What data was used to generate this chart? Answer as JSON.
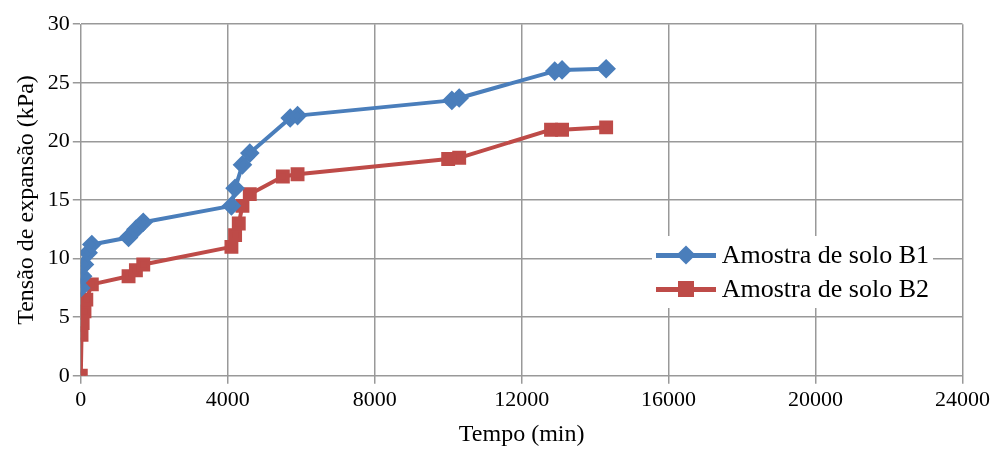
{
  "chart_data": {
    "type": "line",
    "xlabel": "Tempo (min)",
    "ylabel": "Tensão de expansão (kPa)",
    "xlim": [
      0,
      24000
    ],
    "xticks": [
      0,
      4000,
      8000,
      12000,
      16000,
      20000,
      24000
    ],
    "ylim": [
      0,
      30
    ],
    "yticks": [
      0,
      5,
      10,
      15,
      20,
      25,
      30
    ],
    "grid": true,
    "legend": "right",
    "series": [
      {
        "name": "Amostra de solo B1",
        "color": "#4a7ebb",
        "marker": "diamond",
        "x": [
          0,
          50,
          100,
          200,
          300,
          1300,
          1500,
          1700,
          4100,
          4200,
          4400,
          4600,
          5700,
          5900,
          10100,
          10300,
          12900,
          13100,
          14300
        ],
        "values": [
          7.5,
          8.5,
          9.5,
          10.5,
          11.2,
          11.8,
          12.5,
          13.1,
          14.5,
          16,
          18,
          19,
          22,
          22.2,
          23.5,
          23.7,
          26,
          26.1,
          26.2
        ]
      },
      {
        "name": "Amostra de solo B2",
        "color": "#be4b48",
        "marker": "square",
        "x": [
          0,
          20,
          50,
          100,
          150,
          300,
          1300,
          1500,
          1700,
          4100,
          4200,
          4300,
          4400,
          4600,
          5500,
          5900,
          10000,
          10300,
          12800,
          13100,
          14300
        ],
        "values": [
          0,
          3.5,
          4.5,
          5.5,
          6.5,
          7.8,
          8.5,
          9,
          9.5,
          11,
          12,
          13,
          14.5,
          15.5,
          17,
          17.2,
          18.5,
          18.6,
          21,
          21,
          21.2
        ]
      }
    ]
  }
}
